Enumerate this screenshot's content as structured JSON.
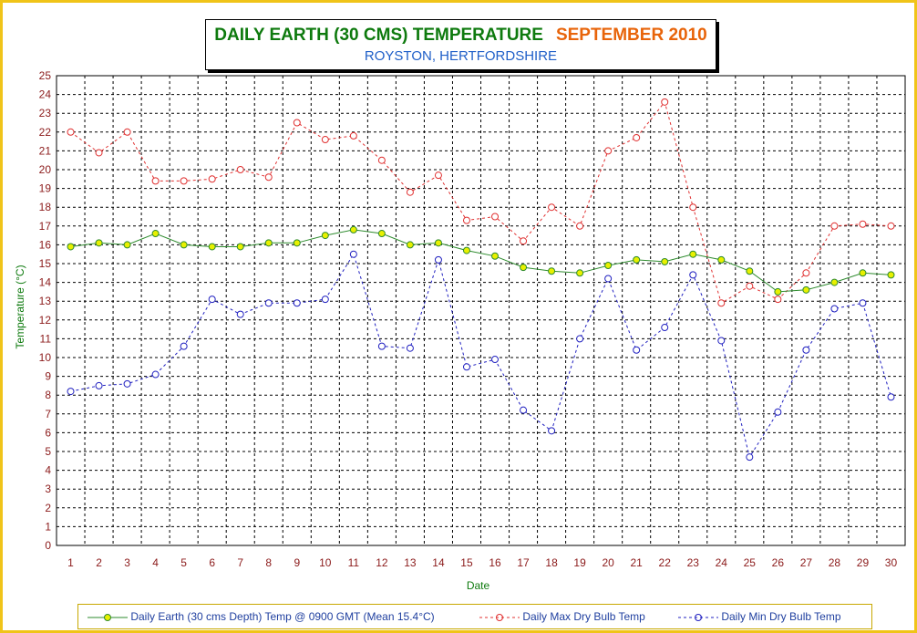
{
  "title": {
    "main": "DAILY EARTH (30 CMS) TEMPERATURE",
    "month": "SEPTEMBER 2010",
    "subtitle": "ROYSTON, HERTFORDSHIRE"
  },
  "colors": {
    "frame": "#f0c419",
    "earth": "#2e8b2e",
    "earth_marker": "#e8f000",
    "max": "#e03030",
    "min": "#2020c0",
    "grid": "#000000",
    "axis_text": "#8b1a1a",
    "axis_title": "#0e7a0e"
  },
  "chart_data": {
    "type": "line",
    "xlabel": "Date",
    "ylabel": "Temperature (°C)",
    "ylim": [
      0,
      25
    ],
    "yticks": [
      0,
      1,
      2,
      3,
      4,
      5,
      6,
      7,
      8,
      9,
      10,
      11,
      12,
      13,
      14,
      15,
      16,
      17,
      18,
      19,
      20,
      21,
      22,
      23,
      24,
      25
    ],
    "x": [
      1,
      2,
      3,
      4,
      5,
      6,
      7,
      8,
      9,
      10,
      11,
      12,
      13,
      14,
      15,
      16,
      17,
      18,
      19,
      20,
      21,
      22,
      23,
      24,
      25,
      26,
      27,
      28,
      29,
      30
    ],
    "grid": true,
    "legend_position": "bottom",
    "series": [
      {
        "name": "Daily Earth (30 cms Depth) Temp @ 0900 GMT (Mean 15.4°C)",
        "style": "solid",
        "values": [
          15.9,
          16.1,
          16.0,
          16.6,
          16.0,
          15.9,
          15.9,
          16.1,
          16.1,
          16.5,
          16.8,
          16.6,
          16.0,
          16.1,
          15.7,
          15.4,
          14.8,
          14.6,
          14.5,
          14.9,
          15.2,
          15.1,
          15.5,
          15.2,
          14.6,
          13.5,
          13.6,
          14.0,
          14.5,
          14.4
        ]
      },
      {
        "name": "Daily Max Dry Bulb Temp",
        "style": "dashed",
        "values": [
          22.0,
          20.9,
          22.0,
          19.4,
          19.4,
          19.5,
          20.0,
          19.6,
          22.5,
          21.6,
          21.8,
          20.5,
          18.8,
          19.7,
          17.3,
          17.5,
          16.2,
          18.0,
          17.0,
          21.0,
          21.7,
          23.6,
          18.0,
          12.9,
          13.8,
          13.1,
          14.5,
          17.0,
          17.1,
          17.0
        ]
      },
      {
        "name": "Daily Min Dry Bulb Temp",
        "style": "dashed",
        "values": [
          8.2,
          8.5,
          8.6,
          9.1,
          10.6,
          13.1,
          12.3,
          12.9,
          12.9,
          13.1,
          15.5,
          10.6,
          10.5,
          15.2,
          9.5,
          9.9,
          7.2,
          6.1,
          11.0,
          14.2,
          10.4,
          11.6,
          14.4,
          10.9,
          4.7,
          7.1,
          10.4,
          12.6,
          12.9,
          7.9
        ]
      }
    ]
  }
}
